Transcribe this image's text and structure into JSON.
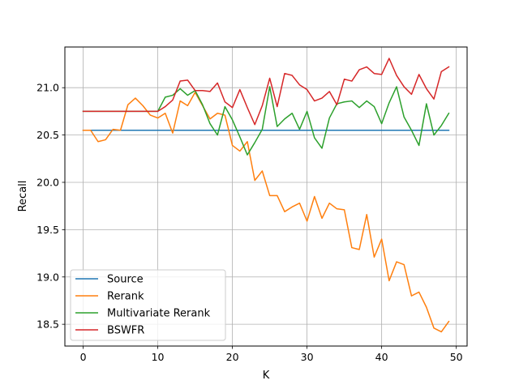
{
  "chart_data": {
    "type": "line",
    "title": "",
    "xlabel": "K",
    "ylabel": "Recall",
    "xlim": [
      -2.45,
      51.45
    ],
    "ylim": [
      18.27,
      21.43
    ],
    "xticks": [
      0,
      10,
      20,
      30,
      40,
      50
    ],
    "yticks": [
      18.5,
      19.0,
      19.5,
      20.0,
      20.5,
      21.0
    ],
    "ytick_labels": [
      "18.5",
      "19.0",
      "19.5",
      "20.0",
      "20.5",
      "21.0"
    ],
    "grid": true,
    "legend_position": "lower-left",
    "series": [
      {
        "name": "Source",
        "color": "#1f77b4",
        "x": [
          0,
          49
        ],
        "y": [
          20.55,
          20.55
        ]
      },
      {
        "name": "Rerank",
        "color": "#ff7f0e",
        "x": [
          0,
          1,
          2,
          3,
          4,
          5,
          6,
          7,
          8,
          9,
          10,
          11,
          12,
          13,
          14,
          15,
          16,
          17,
          18,
          19,
          20,
          21,
          22,
          23,
          24,
          25,
          26,
          27,
          28,
          29,
          30,
          31,
          32,
          33,
          34,
          35,
          36,
          37,
          38,
          39,
          40,
          41,
          42,
          43,
          44,
          45,
          46,
          47,
          48,
          49
        ],
        "y": [
          20.55,
          20.55,
          20.43,
          20.45,
          20.56,
          20.55,
          20.82,
          20.89,
          20.81,
          20.71,
          20.68,
          20.73,
          20.52,
          20.86,
          20.81,
          20.95,
          20.81,
          20.67,
          20.73,
          20.71,
          20.39,
          20.33,
          20.43,
          20.02,
          20.12,
          19.86,
          19.86,
          19.69,
          19.74,
          19.78,
          19.59,
          19.85,
          19.62,
          19.78,
          19.72,
          19.71,
          19.31,
          19.29,
          19.66,
          19.21,
          19.4,
          18.96,
          19.16,
          19.13,
          18.8,
          18.84,
          18.68,
          18.46,
          18.42,
          18.53
        ]
      },
      {
        "name": "Multivariate Rerank",
        "color": "#2ca02c",
        "x": [
          0,
          1,
          2,
          3,
          4,
          5,
          6,
          7,
          8,
          9,
          10,
          11,
          12,
          13,
          14,
          15,
          16,
          17,
          18,
          19,
          20,
          21,
          22,
          23,
          24,
          25,
          26,
          27,
          28,
          29,
          30,
          31,
          32,
          33,
          34,
          35,
          36,
          37,
          38,
          39,
          40,
          41,
          42,
          43,
          44,
          45,
          46,
          47,
          48,
          49
        ],
        "y": [
          20.75,
          20.75,
          20.75,
          20.75,
          20.75,
          20.75,
          20.75,
          20.75,
          20.75,
          20.75,
          20.75,
          20.9,
          20.92,
          20.99,
          20.92,
          20.97,
          20.82,
          20.62,
          20.5,
          20.8,
          20.66,
          20.48,
          20.29,
          20.42,
          20.56,
          21.01,
          20.59,
          20.67,
          20.73,
          20.56,
          20.75,
          20.47,
          20.36,
          20.68,
          20.83,
          20.85,
          20.86,
          20.79,
          20.86,
          20.8,
          20.62,
          20.84,
          21.01,
          20.69,
          20.55,
          20.39,
          20.83,
          20.5,
          20.6,
          20.73
        ]
      },
      {
        "name": "BSWFR",
        "color": "#d62728",
        "x": [
          0,
          1,
          2,
          3,
          4,
          5,
          6,
          7,
          8,
          9,
          10,
          11,
          12,
          13,
          14,
          15,
          16,
          17,
          18,
          19,
          20,
          21,
          22,
          23,
          24,
          25,
          26,
          27,
          28,
          29,
          30,
          31,
          32,
          33,
          34,
          35,
          36,
          37,
          38,
          39,
          40,
          41,
          42,
          43,
          44,
          45,
          46,
          47,
          48,
          49
        ],
        "y": [
          20.75,
          20.75,
          20.75,
          20.75,
          20.75,
          20.75,
          20.75,
          20.75,
          20.75,
          20.75,
          20.75,
          20.8,
          20.87,
          21.07,
          21.08,
          20.97,
          20.97,
          20.96,
          21.05,
          20.85,
          20.79,
          20.98,
          20.79,
          20.61,
          20.81,
          21.1,
          20.8,
          21.15,
          21.13,
          21.03,
          20.98,
          20.86,
          20.89,
          20.96,
          20.82,
          21.09,
          21.07,
          21.19,
          21.22,
          21.15,
          21.14,
          21.31,
          21.13,
          21.01,
          20.93,
          21.14,
          20.99,
          20.88,
          21.17,
          21.22
        ]
      }
    ]
  }
}
